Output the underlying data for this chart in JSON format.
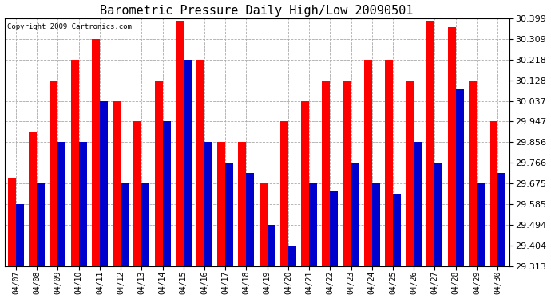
{
  "title": "Barometric Pressure Daily High/Low 20090501",
  "copyright": "Copyright 2009 Cartronics.com",
  "dates": [
    "04/07",
    "04/08",
    "04/09",
    "04/10",
    "04/11",
    "04/12",
    "04/13",
    "04/14",
    "04/15",
    "04/16",
    "04/17",
    "04/18",
    "04/19",
    "04/20",
    "04/21",
    "04/22",
    "04/23",
    "04/24",
    "04/25",
    "04/26",
    "04/27",
    "04/28",
    "04/29",
    "04/30"
  ],
  "highs": [
    29.7,
    29.9,
    30.128,
    30.218,
    30.309,
    30.037,
    29.947,
    30.128,
    30.39,
    30.218,
    29.856,
    29.856,
    29.675,
    29.947,
    30.037,
    30.128,
    30.128,
    30.218,
    30.218,
    30.128,
    30.39,
    30.36,
    30.128,
    29.947
  ],
  "lows": [
    29.585,
    29.675,
    29.856,
    29.856,
    30.037,
    29.675,
    29.675,
    29.947,
    30.218,
    29.856,
    29.766,
    29.72,
    29.494,
    29.404,
    29.675,
    29.64,
    29.766,
    29.675,
    29.63,
    29.856,
    29.766,
    30.09,
    29.68,
    29.72
  ],
  "high_color": "#FF0000",
  "low_color": "#0000CC",
  "bg_color": "#FFFFFF",
  "plot_bg": "#FFFFFF",
  "grid_color": "#AAAAAA",
  "ymin": 29.313,
  "ymax": 30.399,
  "yticks": [
    29.313,
    29.404,
    29.494,
    29.585,
    29.675,
    29.766,
    29.856,
    29.947,
    30.037,
    30.128,
    30.218,
    30.309,
    30.399
  ]
}
